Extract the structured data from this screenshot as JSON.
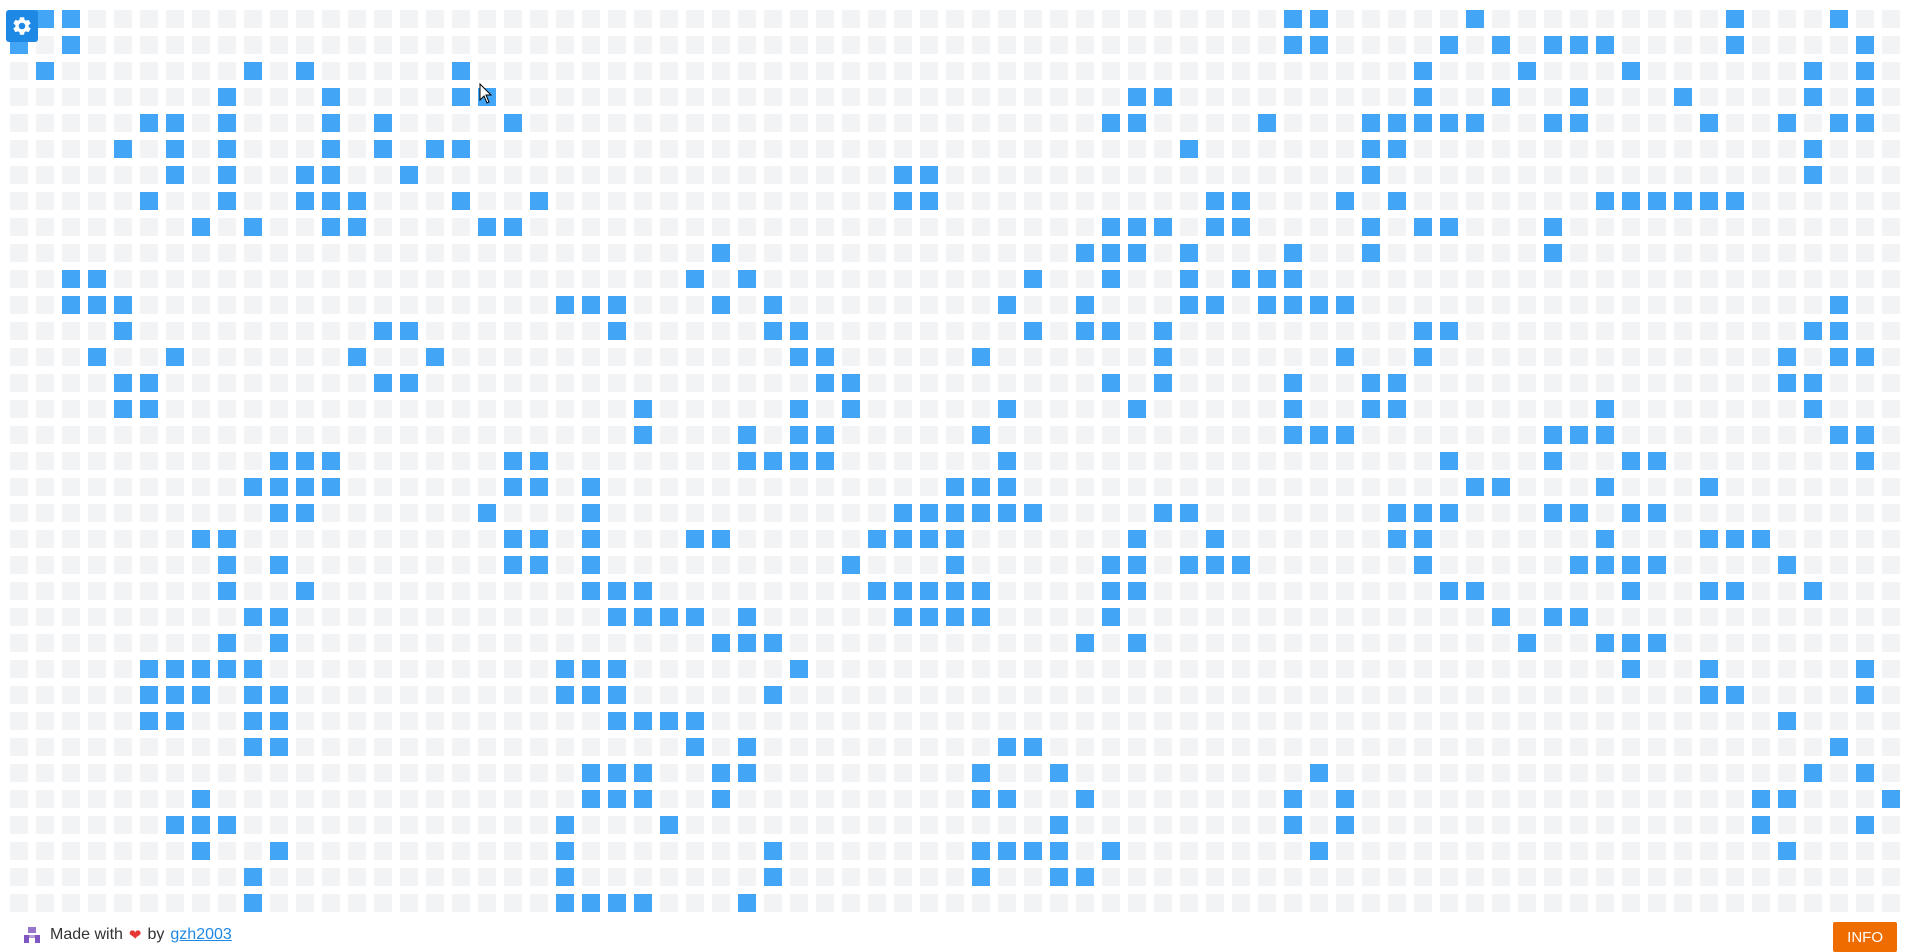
{
  "board": {
    "cols": 60,
    "rows": 35,
    "colors": {
      "alive": "#42a5f5",
      "dead": "#f2f3f4"
    },
    "live_cells": [
      [
        0,
        1
      ],
      [
        0,
        2
      ],
      [
        0,
        49
      ],
      [
        0,
        50
      ],
      [
        0,
        56
      ],
      [
        0,
        66
      ],
      [
        0,
        70
      ],
      [
        1,
        0
      ],
      [
        1,
        2
      ],
      [
        1,
        49
      ],
      [
        1,
        50
      ],
      [
        1,
        55
      ],
      [
        1,
        57
      ],
      [
        1,
        59
      ],
      [
        1,
        60
      ],
      [
        1,
        61
      ],
      [
        1,
        66
      ],
      [
        1,
        71
      ],
      [
        2,
        1
      ],
      [
        2,
        9
      ],
      [
        2,
        11
      ],
      [
        2,
        17
      ],
      [
        2,
        54
      ],
      [
        2,
        58
      ],
      [
        2,
        62
      ],
      [
        2,
        69
      ],
      [
        2,
        71
      ],
      [
        3,
        8
      ],
      [
        3,
        12
      ],
      [
        3,
        17
      ],
      [
        3,
        18
      ],
      [
        3,
        43
      ],
      [
        3,
        44
      ],
      [
        3,
        54
      ],
      [
        3,
        57
      ],
      [
        3,
        60
      ],
      [
        3,
        64
      ],
      [
        3,
        69
      ],
      [
        3,
        71
      ],
      [
        4,
        5
      ],
      [
        4,
        6
      ],
      [
        4,
        8
      ],
      [
        4,
        12
      ],
      [
        4,
        14
      ],
      [
        4,
        19
      ],
      [
        4,
        42
      ],
      [
        4,
        43
      ],
      [
        4,
        48
      ],
      [
        4,
        52
      ],
      [
        4,
        53
      ],
      [
        4,
        54
      ],
      [
        4,
        55
      ],
      [
        4,
        56
      ],
      [
        4,
        59
      ],
      [
        4,
        60
      ],
      [
        4,
        65
      ],
      [
        4,
        68
      ],
      [
        4,
        70
      ],
      [
        4,
        71
      ],
      [
        5,
        4
      ],
      [
        5,
        6
      ],
      [
        5,
        8
      ],
      [
        5,
        12
      ],
      [
        5,
        14
      ],
      [
        5,
        16
      ],
      [
        5,
        17
      ],
      [
        5,
        45
      ],
      [
        5,
        52
      ],
      [
        5,
        53
      ],
      [
        5,
        69
      ],
      [
        6,
        6
      ],
      [
        6,
        8
      ],
      [
        6,
        11
      ],
      [
        6,
        12
      ],
      [
        6,
        15
      ],
      [
        6,
        34
      ],
      [
        6,
        35
      ],
      [
        6,
        52
      ],
      [
        6,
        69
      ],
      [
        7,
        5
      ],
      [
        7,
        8
      ],
      [
        7,
        11
      ],
      [
        7,
        12
      ],
      [
        7,
        13
      ],
      [
        7,
        17
      ],
      [
        7,
        20
      ],
      [
        7,
        34
      ],
      [
        7,
        35
      ],
      [
        7,
        46
      ],
      [
        7,
        47
      ],
      [
        7,
        51
      ],
      [
        7,
        53
      ],
      [
        7,
        61
      ],
      [
        7,
        62
      ],
      [
        7,
        63
      ],
      [
        7,
        64
      ],
      [
        7,
        65
      ],
      [
        7,
        66
      ],
      [
        8,
        7
      ],
      [
        8,
        9
      ],
      [
        8,
        12
      ],
      [
        8,
        13
      ],
      [
        8,
        18
      ],
      [
        8,
        19
      ],
      [
        8,
        42
      ],
      [
        8,
        43
      ],
      [
        8,
        44
      ],
      [
        8,
        46
      ],
      [
        8,
        47
      ],
      [
        8,
        52
      ],
      [
        8,
        54
      ],
      [
        8,
        55
      ],
      [
        8,
        59
      ],
      [
        9,
        27
      ],
      [
        9,
        41
      ],
      [
        9,
        42
      ],
      [
        9,
        43
      ],
      [
        9,
        45
      ],
      [
        9,
        49
      ],
      [
        9,
        52
      ],
      [
        9,
        59
      ],
      [
        10,
        2
      ],
      [
        10,
        3
      ],
      [
        10,
        26
      ],
      [
        10,
        28
      ],
      [
        10,
        39
      ],
      [
        10,
        42
      ],
      [
        10,
        45
      ],
      [
        10,
        47
      ],
      [
        10,
        48
      ],
      [
        10,
        49
      ],
      [
        11,
        2
      ],
      [
        11,
        3
      ],
      [
        11,
        4
      ],
      [
        11,
        21
      ],
      [
        11,
        22
      ],
      [
        11,
        23
      ],
      [
        11,
        27
      ],
      [
        11,
        29
      ],
      [
        11,
        38
      ],
      [
        11,
        41
      ],
      [
        11,
        45
      ],
      [
        11,
        46
      ],
      [
        11,
        48
      ],
      [
        11,
        49
      ],
      [
        11,
        50
      ],
      [
        11,
        51
      ],
      [
        11,
        70
      ],
      [
        12,
        4
      ],
      [
        12,
        14
      ],
      [
        12,
        15
      ],
      [
        12,
        23
      ],
      [
        12,
        29
      ],
      [
        12,
        30
      ],
      [
        12,
        39
      ],
      [
        12,
        41
      ],
      [
        12,
        42
      ],
      [
        12,
        44
      ],
      [
        12,
        54
      ],
      [
        12,
        55
      ],
      [
        12,
        69
      ],
      [
        12,
        70
      ],
      [
        13,
        3
      ],
      [
        13,
        6
      ],
      [
        13,
        13
      ],
      [
        13,
        16
      ],
      [
        13,
        30
      ],
      [
        13,
        31
      ],
      [
        13,
        37
      ],
      [
        13,
        44
      ],
      [
        13,
        51
      ],
      [
        13,
        54
      ],
      [
        13,
        68
      ],
      [
        13,
        70
      ],
      [
        13,
        71
      ],
      [
        14,
        4
      ],
      [
        14,
        5
      ],
      [
        14,
        14
      ],
      [
        14,
        15
      ],
      [
        14,
        31
      ],
      [
        14,
        32
      ],
      [
        14,
        42
      ],
      [
        14,
        44
      ],
      [
        14,
        49
      ],
      [
        14,
        52
      ],
      [
        14,
        53
      ],
      [
        14,
        68
      ],
      [
        14,
        69
      ],
      [
        15,
        4
      ],
      [
        15,
        5
      ],
      [
        15,
        24
      ],
      [
        15,
        30
      ],
      [
        15,
        32
      ],
      [
        15,
        38
      ],
      [
        15,
        43
      ],
      [
        15,
        49
      ],
      [
        15,
        52
      ],
      [
        15,
        53
      ],
      [
        15,
        61
      ],
      [
        15,
        69
      ],
      [
        16,
        24
      ],
      [
        16,
        28
      ],
      [
        16,
        30
      ],
      [
        16,
        31
      ],
      [
        16,
        37
      ],
      [
        16,
        49
      ],
      [
        16,
        50
      ],
      [
        16,
        51
      ],
      [
        16,
        59
      ],
      [
        16,
        60
      ],
      [
        16,
        61
      ],
      [
        16,
        70
      ],
      [
        16,
        71
      ],
      [
        17,
        10
      ],
      [
        17,
        11
      ],
      [
        17,
        12
      ],
      [
        17,
        19
      ],
      [
        17,
        20
      ],
      [
        17,
        28
      ],
      [
        17,
        29
      ],
      [
        17,
        30
      ],
      [
        17,
        31
      ],
      [
        17,
        38
      ],
      [
        17,
        55
      ],
      [
        17,
        59
      ],
      [
        17,
        62
      ],
      [
        17,
        63
      ],
      [
        17,
        71
      ],
      [
        18,
        9
      ],
      [
        18,
        10
      ],
      [
        18,
        11
      ],
      [
        18,
        12
      ],
      [
        18,
        19
      ],
      [
        18,
        20
      ],
      [
        18,
        22
      ],
      [
        18,
        36
      ],
      [
        18,
        37
      ],
      [
        18,
        38
      ],
      [
        18,
        56
      ],
      [
        18,
        57
      ],
      [
        18,
        61
      ],
      [
        18,
        65
      ],
      [
        19,
        10
      ],
      [
        19,
        11
      ],
      [
        19,
        18
      ],
      [
        19,
        22
      ],
      [
        19,
        34
      ],
      [
        19,
        35
      ],
      [
        19,
        36
      ],
      [
        19,
        37
      ],
      [
        19,
        38
      ],
      [
        19,
        39
      ],
      [
        19,
        44
      ],
      [
        19,
        45
      ],
      [
        19,
        53
      ],
      [
        19,
        54
      ],
      [
        19,
        55
      ],
      [
        19,
        59
      ],
      [
        19,
        60
      ],
      [
        19,
        62
      ],
      [
        19,
        63
      ],
      [
        20,
        7
      ],
      [
        20,
        8
      ],
      [
        20,
        19
      ],
      [
        20,
        20
      ],
      [
        20,
        22
      ],
      [
        20,
        26
      ],
      [
        20,
        27
      ],
      [
        20,
        33
      ],
      [
        20,
        34
      ],
      [
        20,
        35
      ],
      [
        20,
        36
      ],
      [
        20,
        43
      ],
      [
        20,
        46
      ],
      [
        20,
        53
      ],
      [
        20,
        54
      ],
      [
        20,
        61
      ],
      [
        20,
        65
      ],
      [
        20,
        66
      ],
      [
        20,
        67
      ],
      [
        21,
        8
      ],
      [
        21,
        10
      ],
      [
        21,
        19
      ],
      [
        21,
        20
      ],
      [
        21,
        22
      ],
      [
        21,
        32
      ],
      [
        21,
        36
      ],
      [
        21,
        42
      ],
      [
        21,
        43
      ],
      [
        21,
        45
      ],
      [
        21,
        46
      ],
      [
        21,
        47
      ],
      [
        21,
        54
      ],
      [
        21,
        60
      ],
      [
        21,
        61
      ],
      [
        21,
        62
      ],
      [
        21,
        63
      ],
      [
        21,
        68
      ],
      [
        22,
        8
      ],
      [
        22,
        11
      ],
      [
        22,
        22
      ],
      [
        22,
        23
      ],
      [
        22,
        24
      ],
      [
        22,
        33
      ],
      [
        22,
        34
      ],
      [
        22,
        35
      ],
      [
        22,
        36
      ],
      [
        22,
        37
      ],
      [
        22,
        42
      ],
      [
        22,
        43
      ],
      [
        22,
        55
      ],
      [
        22,
        56
      ],
      [
        22,
        62
      ],
      [
        22,
        65
      ],
      [
        22,
        66
      ],
      [
        22,
        69
      ],
      [
        23,
        9
      ],
      [
        23,
        10
      ],
      [
        23,
        23
      ],
      [
        23,
        24
      ],
      [
        23,
        25
      ],
      [
        23,
        26
      ],
      [
        23,
        28
      ],
      [
        23,
        34
      ],
      [
        23,
        35
      ],
      [
        23,
        36
      ],
      [
        23,
        37
      ],
      [
        23,
        42
      ],
      [
        23,
        57
      ],
      [
        23,
        59
      ],
      [
        23,
        60
      ],
      [
        24,
        8
      ],
      [
        24,
        10
      ],
      [
        24,
        27
      ],
      [
        24,
        28
      ],
      [
        24,
        29
      ],
      [
        24,
        41
      ],
      [
        24,
        43
      ],
      [
        24,
        58
      ],
      [
        24,
        61
      ],
      [
        24,
        62
      ],
      [
        24,
        63
      ],
      [
        25,
        5
      ],
      [
        25,
        6
      ],
      [
        25,
        7
      ],
      [
        25,
        8
      ],
      [
        25,
        9
      ],
      [
        25,
        21
      ],
      [
        25,
        22
      ],
      [
        25,
        23
      ],
      [
        25,
        30
      ],
      [
        25,
        62
      ],
      [
        25,
        65
      ],
      [
        25,
        71
      ],
      [
        26,
        5
      ],
      [
        26,
        6
      ],
      [
        26,
        7
      ],
      [
        26,
        9
      ],
      [
        26,
        10
      ],
      [
        26,
        21
      ],
      [
        26,
        22
      ],
      [
        26,
        23
      ],
      [
        26,
        29
      ],
      [
        26,
        65
      ],
      [
        26,
        66
      ],
      [
        26,
        71
      ],
      [
        27,
        5
      ],
      [
        27,
        6
      ],
      [
        27,
        9
      ],
      [
        27,
        10
      ],
      [
        27,
        23
      ],
      [
        27,
        24
      ],
      [
        27,
        25
      ],
      [
        27,
        26
      ],
      [
        27,
        68
      ],
      [
        28,
        9
      ],
      [
        28,
        10
      ],
      [
        28,
        26
      ],
      [
        28,
        28
      ],
      [
        28,
        38
      ],
      [
        28,
        39
      ],
      [
        28,
        70
      ],
      [
        29,
        22
      ],
      [
        29,
        23
      ],
      [
        29,
        24
      ],
      [
        29,
        27
      ],
      [
        29,
        28
      ],
      [
        29,
        37
      ],
      [
        29,
        40
      ],
      [
        29,
        50
      ],
      [
        29,
        69
      ],
      [
        29,
        71
      ],
      [
        30,
        7
      ],
      [
        30,
        22
      ],
      [
        30,
        23
      ],
      [
        30,
        24
      ],
      [
        30,
        27
      ],
      [
        30,
        37
      ],
      [
        30,
        38
      ],
      [
        30,
        41
      ],
      [
        30,
        49
      ],
      [
        30,
        51
      ],
      [
        30,
        67
      ],
      [
        30,
        68
      ],
      [
        30,
        72
      ],
      [
        31,
        6
      ],
      [
        31,
        7
      ],
      [
        31,
        8
      ],
      [
        31,
        21
      ],
      [
        31,
        25
      ],
      [
        31,
        40
      ],
      [
        31,
        49
      ],
      [
        31,
        51
      ],
      [
        31,
        67
      ],
      [
        31,
        71
      ],
      [
        32,
        7
      ],
      [
        32,
        10
      ],
      [
        32,
        21
      ],
      [
        32,
        29
      ],
      [
        32,
        37
      ],
      [
        32,
        38
      ],
      [
        32,
        39
      ],
      [
        32,
        40
      ],
      [
        32,
        42
      ],
      [
        32,
        50
      ],
      [
        32,
        68
      ],
      [
        33,
        9
      ],
      [
        33,
        21
      ],
      [
        33,
        29
      ],
      [
        33,
        37
      ],
      [
        33,
        40
      ],
      [
        33,
        41
      ],
      [
        34,
        9
      ],
      [
        34,
        21
      ],
      [
        34,
        22
      ],
      [
        34,
        23
      ],
      [
        34,
        24
      ],
      [
        34,
        28
      ]
    ]
  },
  "controls": {
    "settings_icon": "gear-icon"
  },
  "footer": {
    "made_with": "Made with",
    "heart": "❤",
    "by": "by",
    "author_link": "gzh2003",
    "info_button": "INFO"
  }
}
